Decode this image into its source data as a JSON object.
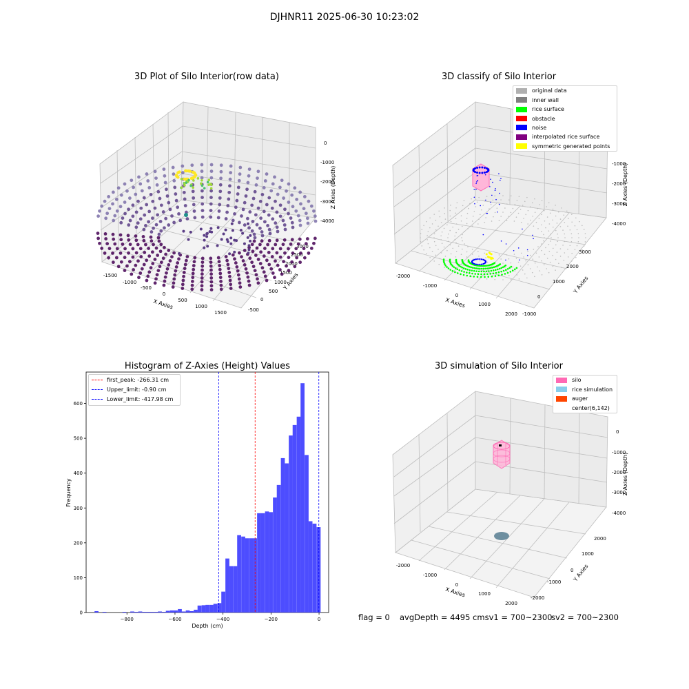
{
  "page": {
    "suptitle": "DJHNR11 2025-06-30 10:23:02",
    "colors": {
      "hist_bar": "#4d4dff",
      "peak_line": "#ff0000",
      "limit_line": "#0000ff",
      "silo": "#ff69b4",
      "rice_simulation": "#87ceeb",
      "auger": "#ff4500"
    },
    "bottom_text": {
      "flag": "flag = 0",
      "avg": "avgDepth = 4495 cmsv1 = 700~2300",
      "sv2": "sv2 = 700~2300"
    }
  },
  "chart_data": [
    {
      "type": "scatter3d",
      "title": "3D Plot of Silo Interior(row data)",
      "xlabel": "X Axies",
      "ylabel": "Y Axies",
      "zlabel": "Z Axies (Depth)",
      "xticks": [
        "-1500",
        "-1000",
        "-500",
        "0",
        "500",
        "1000",
        "1500"
      ],
      "yticks": [
        "-500",
        "0",
        "500",
        "1000",
        "1500",
        "2000",
        "2500",
        "3000"
      ],
      "zticks": [
        "0",
        "-1000",
        "-2000",
        "-3000",
        "-4000"
      ],
      "colormap": "viridis"
    },
    {
      "type": "scatter3d",
      "title": "3D classify of Silo Interior",
      "xlabel": "X Axies",
      "ylabel": "Y Axies",
      "zlabel": "Z Axies (Depth)",
      "xticks": [
        "-2000",
        "-1000",
        "0",
        "1000",
        "2000"
      ],
      "yticks": [
        "-1000",
        "0",
        "1000",
        "2000",
        "3000"
      ],
      "zticks": [
        "-1000",
        "-2000",
        "-3000",
        "-4000"
      ],
      "legend_position": "top-right",
      "legend": [
        {
          "label": "original data",
          "color": "#b0b0b0"
        },
        {
          "label": "inner wall",
          "color": "#808080"
        },
        {
          "label": "rice surface",
          "color": "#00ff00"
        },
        {
          "label": "obstacle",
          "color": "#ff0000"
        },
        {
          "label": "noise",
          "color": "#0000ff"
        },
        {
          "label": "interpolated rice surface",
          "color": "#800080"
        },
        {
          "label": "symmetric generated points",
          "color": "#ffff00"
        }
      ]
    },
    {
      "type": "bar",
      "title": "Histogram of Z-Axies (Height) Values",
      "xlabel": "Depth (cm)",
      "ylabel": "Frequency",
      "xlim": [
        -970,
        40
      ],
      "ylim": [
        0,
        690
      ],
      "xticks": [
        -800,
        -600,
        -400,
        -200,
        0
      ],
      "yticks": [
        0,
        100,
        200,
        300,
        400,
        500,
        600
      ],
      "bin_width": 16.5,
      "bins": [
        [
          -935,
          4
        ],
        [
          -902,
          2
        ],
        [
          -819,
          2
        ],
        [
          -786,
          3
        ],
        [
          -770,
          2
        ],
        [
          -753,
          3
        ],
        [
          -736,
          2
        ],
        [
          -720,
          2
        ],
        [
          -704,
          2
        ],
        [
          -687,
          2
        ],
        [
          -671,
          3
        ],
        [
          -654,
          2
        ],
        [
          -638,
          5
        ],
        [
          -621,
          6
        ],
        [
          -605,
          6
        ],
        [
          -588,
          10
        ],
        [
          -572,
          3
        ],
        [
          -555,
          6
        ],
        [
          -539,
          4
        ],
        [
          -522,
          8
        ],
        [
          -506,
          20
        ],
        [
          -489,
          21
        ],
        [
          -473,
          22
        ],
        [
          -456,
          22
        ],
        [
          -440,
          25
        ],
        [
          -423,
          27
        ],
        [
          -407,
          60
        ],
        [
          -390,
          155
        ],
        [
          -374,
          133
        ],
        [
          -357,
          133
        ],
        [
          -341,
          222
        ],
        [
          -324,
          218
        ],
        [
          -308,
          213
        ],
        [
          -291,
          213
        ],
        [
          -275,
          213
        ],
        [
          -258,
          285
        ],
        [
          -242,
          285
        ],
        [
          -225,
          290
        ],
        [
          -209,
          288
        ],
        [
          -192,
          330
        ],
        [
          -176,
          366
        ],
        [
          -159,
          443
        ],
        [
          -143,
          428
        ],
        [
          -126,
          508
        ],
        [
          -110,
          538
        ],
        [
          -93,
          562
        ],
        [
          -77,
          658
        ],
        [
          -60,
          452
        ],
        [
          -44,
          262
        ],
        [
          -27,
          255
        ],
        [
          -10,
          245
        ]
      ],
      "lines": [
        {
          "label": "first_peak: -266.31 cm",
          "x": -266.31,
          "color": "#ff0000"
        },
        {
          "label": "Upper_limit: -0.90 cm",
          "x": -0.9,
          "color": "#0000ff"
        },
        {
          "label": "Lower_limit: -417.98 cm",
          "x": -417.98,
          "color": "#0000ff"
        }
      ],
      "legend_position": "upper-left"
    },
    {
      "type": "scatter3d",
      "title": "3D simulation of Silo Interior",
      "xlabel": "X Axies",
      "ylabel": "Y Axies",
      "zlabel": "Z Axies (Depth)",
      "xticks": [
        "-2000",
        "-1000",
        "0",
        "1000",
        "2000"
      ],
      "yticks": [
        "-2000",
        "-1000",
        "0",
        "1000",
        "2000"
      ],
      "zticks": [
        "0",
        "-1000",
        "-2000",
        "-3000",
        "-4000"
      ],
      "legend_position": "top-right",
      "legend": [
        {
          "label": "silo",
          "color": "#ff69b4"
        },
        {
          "label": "rice simulation",
          "color": "#87ceeb"
        },
        {
          "label": "auger",
          "color": "#ff4500"
        },
        {
          "label": "center(6,142)",
          "color": ""
        }
      ]
    }
  ]
}
